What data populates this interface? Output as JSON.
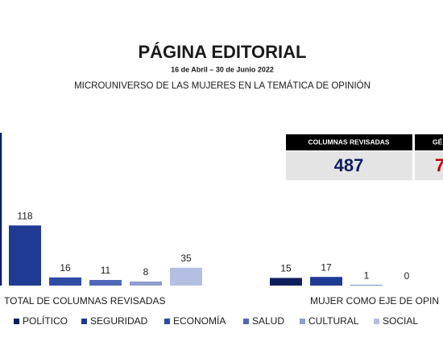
{
  "header": {
    "title": "PÁGINA EDITORIAL",
    "date": "16 de Abril – 30 de Junio 2022",
    "subtitle": "MICROUNIVERSO DE LAS MUJERES EN LA TEMÁTICA DE OPINIÓN"
  },
  "stats": [
    {
      "label": "COLUMNAS REVISADAS",
      "value": "487"
    },
    {
      "label": "GÉ",
      "value": "7"
    }
  ],
  "chart_data": {
    "type": "bar",
    "categories": [
      "TOTAL DE COLUMNAS REVISADAS",
      "MUJER COMO EJE DE OPIN"
    ],
    "ylim": [
      0,
      300
    ],
    "series": [
      {
        "name": "POLÍTICO",
        "color": "#0f1f5e",
        "values": [
          null,
          15
        ]
      },
      {
        "name": "SEGURIDAD",
        "color": "#1f3a93",
        "values": [
          118,
          17
        ]
      },
      {
        "name": "ECONOMÍA",
        "color": "#2d4ca6",
        "values": [
          16,
          1
        ]
      },
      {
        "name": "SALUD",
        "color": "#4f69b8",
        "values": [
          11,
          0
        ]
      },
      {
        "name": "CULTURAL",
        "color": "#8e9fd0",
        "values": [
          8,
          null
        ]
      },
      {
        "name": "SOCIAL",
        "color": "#b4bfe2",
        "values": [
          35,
          null
        ]
      }
    ]
  }
}
